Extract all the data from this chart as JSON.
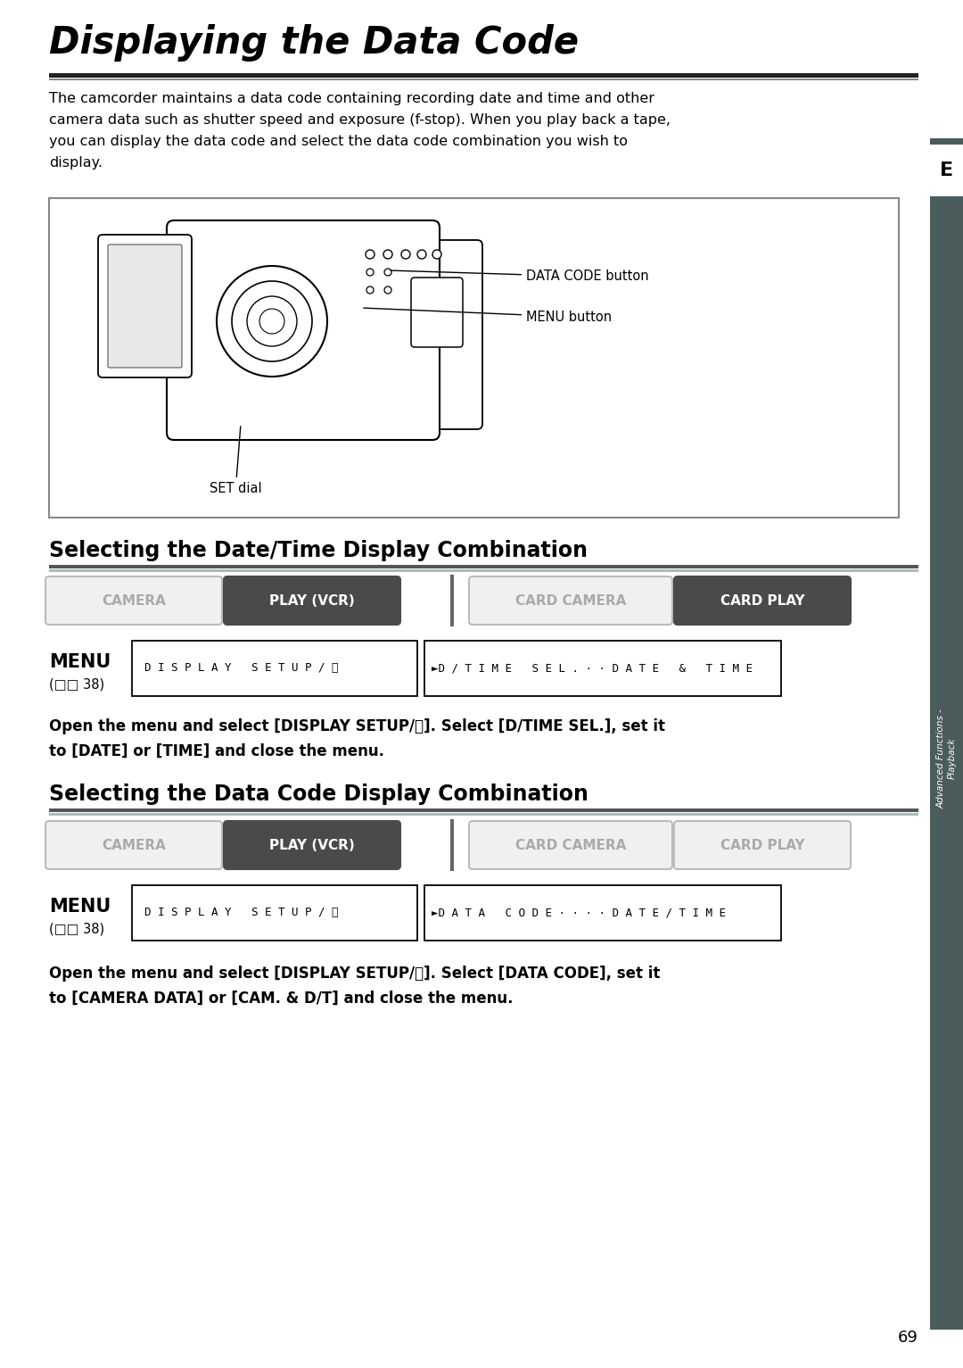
{
  "title": "Displaying the Data Code",
  "bg_color": "#ffffff",
  "page_number": "69",
  "sidebar_color": "#4a5c5c",
  "sidebar_letter": "E",
  "sidebar_text": "Advanced Functions -\nPlayback",
  "intro_text_lines": [
    "The camcorder maintains a data code containing recording date and time and other",
    "camera data such as shutter speed and exposure (f-stop). When you play back a tape,",
    "you can display the data code and select the data code combination you wish to",
    "display."
  ],
  "section1_title": "Selecting the Date/Time Display Combination",
  "section2_title": "Selecting the Data Code Display Combination",
  "button_inactive_bg": "#f0f0f0",
  "button_inactive_edge": "#bbbbbb",
  "button_active_bg": "#4a4a4a",
  "button_inactive_text": "#aaaaaa",
  "button_active_text": "#ffffff",
  "buttons1": [
    "CAMERA",
    "PLAY (VCR)",
    "CARD CAMERA",
    "CARD PLAY"
  ],
  "buttons1_active": [
    false,
    true,
    false,
    true
  ],
  "buttons2": [
    "CAMERA",
    "PLAY (VCR)",
    "CARD CAMERA",
    "CARD PLAY"
  ],
  "buttons2_active": [
    false,
    true,
    false,
    false
  ],
  "menu_box1_left": "D I S P L A Y   S E T U P / Ⓢ",
  "menu_box1_right": "►D / T I M E   S E L . · · D A T E   &   T I M E",
  "menu_box2_left": "D I S P L A Y   S E T U P / Ⓢ",
  "menu_box2_right": "►D A T A   C O D E · · · · D A T E / T I M E",
  "desc1_lines": [
    "Open the menu and select [DISPLAY SETUP/Ⓢ]. Select [D/TIME SEL.], set it",
    "to [DATE] or [TIME] and close the menu."
  ],
  "desc2_lines": [
    "Open the menu and select [DISPLAY SETUP/Ⓢ]. Select [DATA CODE], set it",
    "to [CAMERA DATA] or [CAM. & D/T] and close the menu."
  ],
  "menu_label": "MENU",
  "menu_ref": "(□□ 38)",
  "cam_label1": "DATA CODE button",
  "cam_label2": "MENU button",
  "cam_label3": "SET dial",
  "section_underline_dark": "#555555",
  "section_underline_light": "#aabbbb"
}
